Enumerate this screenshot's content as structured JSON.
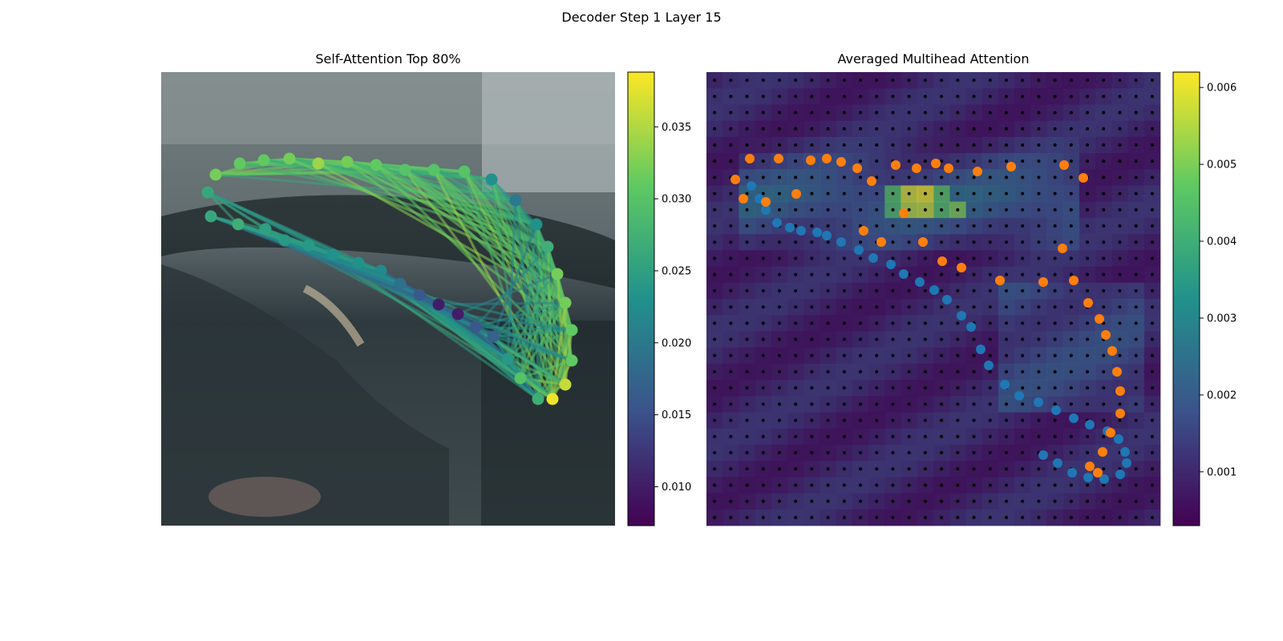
{
  "figure": {
    "title": "Decoder Step 1 Layer 15"
  },
  "chart_data": [
    {
      "type": "scatter",
      "title": "Self-Attention Top 80%",
      "background": "photo of a car (blurred street scene)",
      "colormap": "viridis",
      "colorbar": {
        "range": [
          0.0073,
          0.0388
        ],
        "ticks": [
          "0.010",
          "0.015",
          "0.020",
          "0.025",
          "0.030",
          "0.035"
        ]
      },
      "edges": "line segments between lane points, colored by attention weight",
      "points": [
        [
          68,
          128,
          0.032
        ],
        [
          98,
          114,
          0.031
        ],
        [
          128,
          110,
          0.031
        ],
        [
          160,
          108,
          0.032
        ],
        [
          196,
          114,
          0.034
        ],
        [
          232,
          112,
          0.032
        ],
        [
          268,
          116,
          0.031
        ],
        [
          304,
          122,
          0.03
        ],
        [
          340,
          122,
          0.03
        ],
        [
          378,
          124,
          0.03
        ],
        [
          412,
          134,
          0.023
        ],
        [
          442,
          160,
          0.02
        ],
        [
          468,
          190,
          0.023
        ],
        [
          482,
          218,
          0.027
        ],
        [
          494,
          252,
          0.032
        ],
        [
          504,
          288,
          0.032
        ],
        [
          512,
          322,
          0.031
        ],
        [
          512,
          360,
          0.031
        ],
        [
          504,
          390,
          0.036
        ],
        [
          488,
          408,
          0.038
        ],
        [
          470,
          408,
          0.027
        ],
        [
          448,
          382,
          0.03
        ],
        [
          432,
          358,
          0.024
        ],
        [
          414,
          330,
          0.017
        ],
        [
          392,
          318,
          0.016
        ],
        [
          370,
          302,
          0.01
        ],
        [
          346,
          290,
          0.01
        ],
        [
          322,
          278,
          0.016
        ],
        [
          298,
          264,
          0.019
        ],
        [
          274,
          248,
          0.022
        ],
        [
          246,
          238,
          0.023
        ],
        [
          214,
          228,
          0.023
        ],
        [
          184,
          216,
          0.024
        ],
        [
          154,
          210,
          0.024
        ],
        [
          130,
          196,
          0.025
        ],
        [
          96,
          190,
          0.027
        ],
        [
          62,
          180,
          0.026
        ],
        [
          58,
          150,
          0.026
        ]
      ]
    },
    {
      "type": "heatmap",
      "title": "Averaged Multihead Attention",
      "background": "same car photo under attention heatmap",
      "colormap": "viridis",
      "colorbar": {
        "range": [
          0.0003,
          0.0062
        ],
        "ticks": [
          "0.001",
          "0.002",
          "0.003",
          "0.004",
          "0.005",
          "0.006"
        ]
      },
      "grid": {
        "rows": 28,
        "cols": 28
      },
      "hotspots": [
        {
          "row": 7,
          "col": 12,
          "value": 0.0058
        },
        {
          "row": 7,
          "col": 13,
          "value": 0.006
        },
        {
          "row": 8,
          "col": 12,
          "value": 0.0055
        },
        {
          "row": 8,
          "col": 13,
          "value": 0.0056
        },
        {
          "row": 8,
          "col": 15,
          "value": 0.005
        },
        {
          "row": 7,
          "col": 11,
          "value": 0.0045
        },
        {
          "row": 8,
          "col": 11,
          "value": 0.0044
        },
        {
          "row": 7,
          "col": 14,
          "value": 0.0046
        },
        {
          "row": 8,
          "col": 14,
          "value": 0.0045
        }
      ],
      "series": [
        {
          "color": "#1f77b4",
          "points": [
            [
              56,
              142
            ],
            [
              66,
              158
            ],
            [
              74,
              172
            ],
            [
              88,
              188
            ],
            [
              104,
              194
            ],
            [
              118,
              198
            ],
            [
              138,
              200
            ],
            [
              150,
              204
            ],
            [
              168,
              212
            ],
            [
              190,
              222
            ],
            [
              208,
              232
            ],
            [
              230,
              240
            ],
            [
              246,
              252
            ],
            [
              266,
              262
            ],
            [
              284,
              272
            ],
            [
              300,
              284
            ],
            [
              318,
              304
            ],
            [
              330,
              318
            ],
            [
              342,
              346
            ],
            [
              352,
              366
            ],
            [
              372,
              390
            ],
            [
              390,
              404
            ],
            [
              414,
              412
            ],
            [
              436,
              422
            ],
            [
              458,
              432
            ],
            [
              478,
              440
            ],
            [
              500,
              448
            ],
            [
              514,
              458
            ],
            [
              522,
              474
            ],
            [
              524,
              488
            ],
            [
              516,
              502
            ],
            [
              496,
              508
            ],
            [
              476,
              506
            ],
            [
              456,
              500
            ],
            [
              438,
              488
            ],
            [
              420,
              478
            ]
          ]
        },
        {
          "color": "#ff7f0e",
          "points": [
            [
              36,
              134
            ],
            [
              46,
              158
            ],
            [
              54,
              108
            ],
            [
              74,
              162
            ],
            [
              90,
              108
            ],
            [
              112,
              152
            ],
            [
              130,
              110
            ],
            [
              150,
              108
            ],
            [
              168,
              112
            ],
            [
              188,
              120
            ],
            [
              196,
              198
            ],
            [
              206,
              136
            ],
            [
              218,
              212
            ],
            [
              236,
              116
            ],
            [
              246,
              176
            ],
            [
              262,
              120
            ],
            [
              270,
              212
            ],
            [
              286,
              114
            ],
            [
              294,
              236
            ],
            [
              302,
              120
            ],
            [
              318,
              244
            ],
            [
              338,
              124
            ],
            [
              366,
              260
            ],
            [
              380,
              118
            ],
            [
              420,
              262
            ],
            [
              444,
              220
            ],
            [
              446,
              116
            ],
            [
              458,
              260
            ],
            [
              470,
              132
            ],
            [
              476,
              288
            ],
            [
              490,
              308
            ],
            [
              498,
              328
            ],
            [
              506,
              348
            ],
            [
              512,
              374
            ],
            [
              516,
              398
            ],
            [
              516,
              426
            ],
            [
              504,
              450
            ],
            [
              494,
              474
            ],
            [
              488,
              500
            ],
            [
              478,
              492
            ]
          ]
        }
      ]
    }
  ]
}
